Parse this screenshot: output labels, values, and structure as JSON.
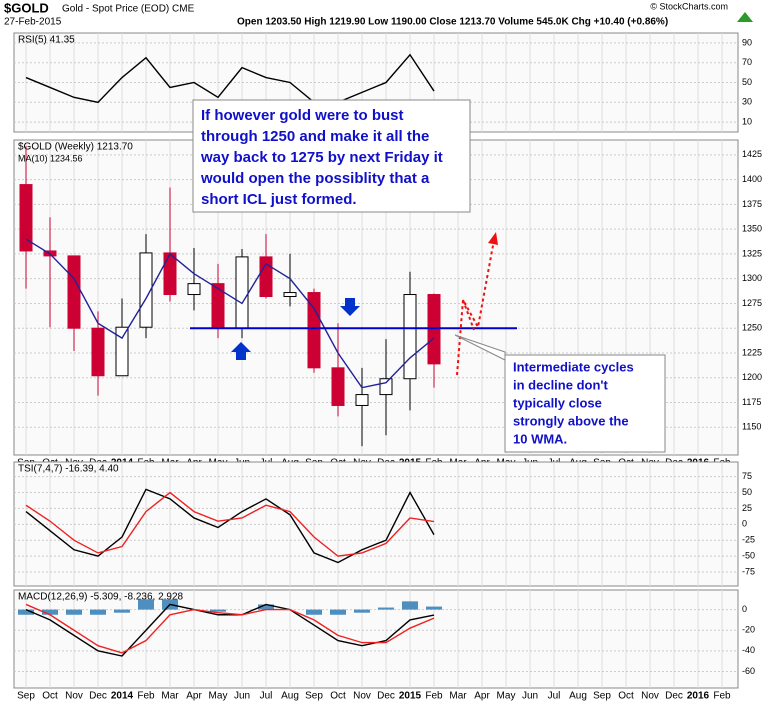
{
  "header": {
    "symbol": "$GOLD",
    "name": "Gold - Spot Price (EOD) CME",
    "date": "27-Feb-2015",
    "stats": "Open 1203.50  High 1219.90  Low 1190.00  Close 1213.70  Volume 545.0K  Chg +10.40 (+0.86%)",
    "credit": "© StockCharts.com"
  },
  "chart_data": [
    {
      "type": "line",
      "label": "RSI(5) 41.35",
      "ylim": [
        0,
        100
      ],
      "yticks": [
        10,
        30,
        50,
        70,
        90
      ],
      "grid": true,
      "series": [
        {
          "color": "#000000",
          "values": [
            55,
            45,
            35,
            30,
            55,
            75,
            45,
            50,
            35,
            65,
            55,
            50,
            30,
            30,
            40,
            50,
            78,
            41.35,
            null,
            null,
            null,
            null,
            null,
            null,
            null,
            null,
            null,
            null,
            null,
            null
          ]
        }
      ]
    },
    {
      "type": "candlestick",
      "label": "$GOLD (Weekly) 1213.70",
      "ylim": [
        1122,
        1440
      ],
      "yticks": [
        1150,
        1175,
        1200,
        1225,
        1250,
        1275,
        1300,
        1325,
        1350,
        1375,
        1400,
        1425
      ],
      "grid": true,
      "level": 1250,
      "level_color": "#0000cc",
      "categories": [
        "Sep",
        "Oct",
        "Nov",
        "Dec",
        "2014",
        "Feb",
        "Mar",
        "Apr",
        "May",
        "Jun",
        "Jul",
        "Aug",
        "Sep",
        "Oct",
        "Nov",
        "Dec",
        "2015",
        "Feb",
        "Mar",
        "Apr",
        "May",
        "Jun",
        "Jul",
        "Aug",
        "Sep",
        "Oct",
        "Nov",
        "Dec",
        "2016",
        "Feb"
      ],
      "open": [
        1395,
        1328,
        1323,
        1250,
        1202,
        1251,
        1326,
        1284,
        1295,
        1250,
        1322,
        1282,
        1286,
        1210,
        1172,
        1183,
        1199,
        1284,
        null,
        null,
        null,
        null,
        null,
        null,
        null,
        null,
        null,
        null,
        null,
        null
      ],
      "high": [
        1434,
        1362,
        1323,
        1267,
        1280,
        1345,
        1392,
        1331,
        1315,
        1330,
        1345,
        1325,
        1290,
        1255,
        1210,
        1239,
        1307,
        1285,
        null,
        null,
        null,
        null,
        null,
        null,
        null,
        null,
        null,
        null,
        null,
        null
      ],
      "low": [
        1290,
        1251,
        1227,
        1182,
        1202,
        1240,
        1277,
        1268,
        1240,
        1240,
        1280,
        1272,
        1205,
        1161,
        1131,
        1142,
        1167,
        1190,
        null,
        null,
        null,
        null,
        null,
        null,
        null,
        null,
        null,
        null,
        null,
        null
      ],
      "close": [
        1328,
        1323,
        1250,
        1202,
        1251,
        1326,
        1284,
        1295,
        1250,
        1322,
        1282,
        1286,
        1210,
        1172,
        1183,
        1199,
        1284,
        1214,
        null,
        null,
        null,
        null,
        null,
        null,
        null,
        null,
        null,
        null,
        null,
        null
      ],
      "up_color": "#000000",
      "down_color": "#cc0033",
      "series": [
        {
          "name": "MA(10) 1234.56",
          "color": "#22229a",
          "values": [
            1340,
            1325,
            1300,
            1255,
            1240,
            1280,
            1325,
            1305,
            1290,
            1275,
            1315,
            1300,
            1270,
            1225,
            1190,
            1195,
            1220,
            1240,
            null,
            null,
            null,
            null,
            null,
            null,
            null,
            null,
            null,
            null,
            null,
            null
          ]
        }
      ],
      "annotations": [
        [
          "If however gold were to bust",
          "through 1250 and make it all the",
          "way back to 1275 by next Friday it",
          "would open the possiblity that a",
          "short ICL just formed."
        ],
        [
          "Intermediate cycles",
          "in decline don't",
          "typically close",
          "strongly above the",
          "10 WMA."
        ]
      ]
    },
    {
      "type": "line",
      "label": "TSI(7,4,7) -16.39, 4.40",
      "ylim": [
        -97,
        98
      ],
      "yticks": [
        -75,
        -50,
        -25,
        0,
        25,
        50,
        75
      ],
      "grid": true,
      "series": [
        {
          "color": "#000000",
          "values": [
            20,
            -10,
            -40,
            -50,
            -20,
            55,
            40,
            10,
            -5,
            20,
            40,
            15,
            -45,
            -60,
            -40,
            -25,
            50,
            -16.39,
            null,
            null,
            null,
            null,
            null,
            null,
            null,
            null,
            null,
            null,
            null,
            null
          ]
        },
        {
          "color": "#ee2222",
          "values": [
            30,
            5,
            -25,
            -45,
            -35,
            20,
            50,
            20,
            5,
            10,
            30,
            20,
            -20,
            -50,
            -45,
            -30,
            10,
            4.4,
            null,
            null,
            null,
            null,
            null,
            null,
            null,
            null,
            null,
            null,
            null,
            null
          ]
        }
      ]
    },
    {
      "type": "line",
      "label": "MACD(12,26,9) -5.309, -8.236, 2.928",
      "ylim": [
        -76,
        19
      ],
      "yticks": [
        -60,
        -40,
        -20,
        0
      ],
      "grid": true,
      "categories": [
        "Sep",
        "Oct",
        "Nov",
        "Dec",
        "2014",
        "Feb",
        "Mar",
        "Apr",
        "May",
        "Jun",
        "Jul",
        "Aug",
        "Sep",
        "Oct",
        "Nov",
        "Dec",
        "2015",
        "Feb",
        "Mar",
        "Apr",
        "May",
        "Jun",
        "Jul",
        "Aug",
        "Sep",
        "Oct",
        "Nov",
        "Dec",
        "2016",
        "Feb"
      ],
      "histogram": {
        "color": "#4f8fc0",
        "values": [
          -5,
          -5,
          -5,
          -5,
          -3,
          10,
          10,
          0,
          -2,
          0,
          5,
          0,
          -5,
          -5,
          -3,
          2,
          8,
          2.928,
          null,
          null,
          null,
          null,
          null,
          null,
          null,
          null,
          null,
          null,
          null,
          null
        ]
      },
      "series": [
        {
          "color": "#000000",
          "values": [
            0,
            -10,
            -25,
            -40,
            -45,
            -20,
            5,
            0,
            -5,
            -5,
            5,
            0,
            -15,
            -30,
            -35,
            -30,
            -10,
            -5.309,
            null,
            null,
            null,
            null,
            null,
            null,
            null,
            null,
            null,
            null,
            null,
            null
          ]
        },
        {
          "color": "#ee2222",
          "values": [
            5,
            -5,
            -20,
            -35,
            -42,
            -30,
            -5,
            0,
            -3,
            -5,
            0,
            0,
            -10,
            -25,
            -32,
            -32,
            -18,
            -8.236,
            null,
            null,
            null,
            null,
            null,
            null,
            null,
            null,
            null,
            null,
            null,
            null
          ]
        }
      ]
    }
  ]
}
